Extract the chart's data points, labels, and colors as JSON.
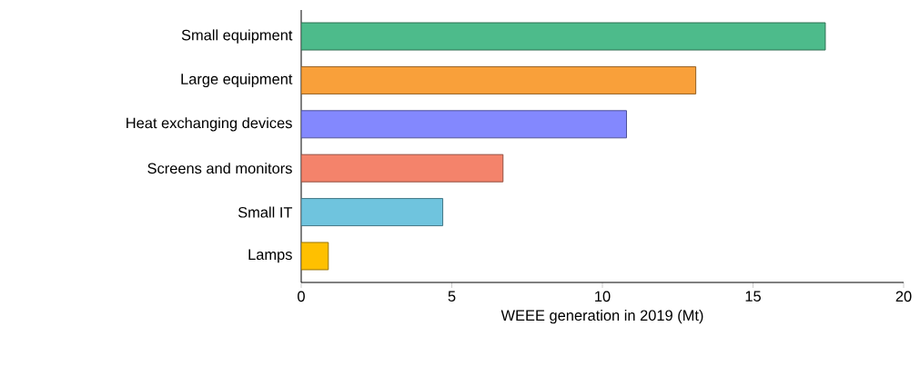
{
  "chart_data": {
    "type": "bar",
    "orientation": "horizontal",
    "xlabel": "WEEE generation in 2019 (Mt)",
    "categories": [
      "Small equipment",
      "Large equipment",
      "Heat exchanging devices",
      "Screens and monitors",
      "Small IT",
      "Lamps"
    ],
    "values": [
      17.4,
      13.1,
      10.8,
      6.7,
      4.7,
      0.9
    ],
    "colors": [
      "#4dbb8b",
      "#f9a03a",
      "#8388fe",
      "#f4836b",
      "#6fc4de",
      "#ffc000"
    ],
    "xlim": [
      0,
      20
    ],
    "xticks": [
      0,
      5,
      10,
      15,
      20
    ]
  }
}
